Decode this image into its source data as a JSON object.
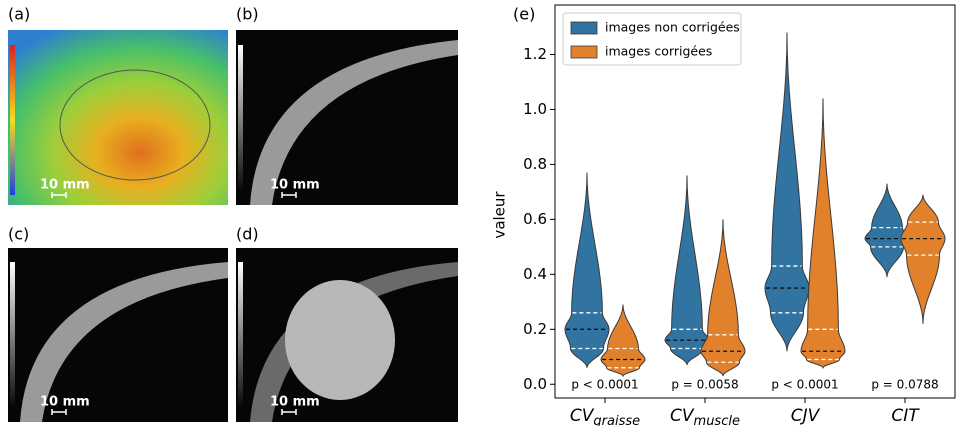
{
  "panels": [
    {
      "label": "(a)",
      "scale": "10 mm"
    },
    {
      "label": "(b)",
      "scale": "10 mm"
    },
    {
      "label": "(c)",
      "scale": "10 mm"
    },
    {
      "label": "(d)",
      "scale": "10 mm"
    }
  ],
  "chart_data": {
    "type": "violin",
    "panel_label": "(e)",
    "ylabel": "valeur",
    "categories": [
      {
        "text": "CV",
        "sub": "graisse"
      },
      {
        "text": "CV",
        "sub": "muscle"
      },
      {
        "text": "CJV"
      },
      {
        "text": "CIT"
      }
    ],
    "annotations": [
      "p < 0.0001",
      "p = 0.0058",
      "p < 0.0001",
      "p = 0.0788"
    ],
    "series": [
      {
        "name": "images non corrigées",
        "color": "#3274a1",
        "stats": [
          {
            "min": 0.06,
            "q1": 0.13,
            "median": 0.2,
            "q3": 0.26,
            "max": 0.77
          },
          {
            "min": 0.07,
            "q1": 0.13,
            "median": 0.16,
            "q3": 0.2,
            "max": 0.76
          },
          {
            "min": 0.12,
            "q1": 0.26,
            "median": 0.35,
            "q3": 0.43,
            "max": 1.28
          },
          {
            "min": 0.39,
            "q1": 0.5,
            "median": 0.53,
            "q3": 0.57,
            "max": 0.73
          }
        ]
      },
      {
        "name": "images corrigées",
        "color": "#e1812c",
        "stats": [
          {
            "min": 0.03,
            "q1": 0.06,
            "median": 0.09,
            "q3": 0.13,
            "max": 0.29
          },
          {
            "min": 0.03,
            "q1": 0.08,
            "median": 0.12,
            "q3": 0.18,
            "max": 0.6
          },
          {
            "min": 0.06,
            "q1": 0.09,
            "median": 0.12,
            "q3": 0.2,
            "max": 1.04
          },
          {
            "min": 0.22,
            "q1": 0.47,
            "median": 0.53,
            "q3": 0.59,
            "max": 0.69
          }
        ]
      }
    ],
    "ylim": [
      -0.05,
      1.38
    ],
    "yticks": [
      {
        "value": 0,
        "label": "0.0"
      },
      {
        "value": 0.2,
        "label": "0.2"
      },
      {
        "value": 0.4,
        "label": "0.4"
      },
      {
        "value": 0.6,
        "label": "0.6"
      },
      {
        "value": 0.8,
        "label": "0.8"
      },
      {
        "value": 1.0,
        "label": "1.0"
      },
      {
        "value": 1.2,
        "label": "1.2"
      }
    ],
    "legend": "upper left"
  }
}
